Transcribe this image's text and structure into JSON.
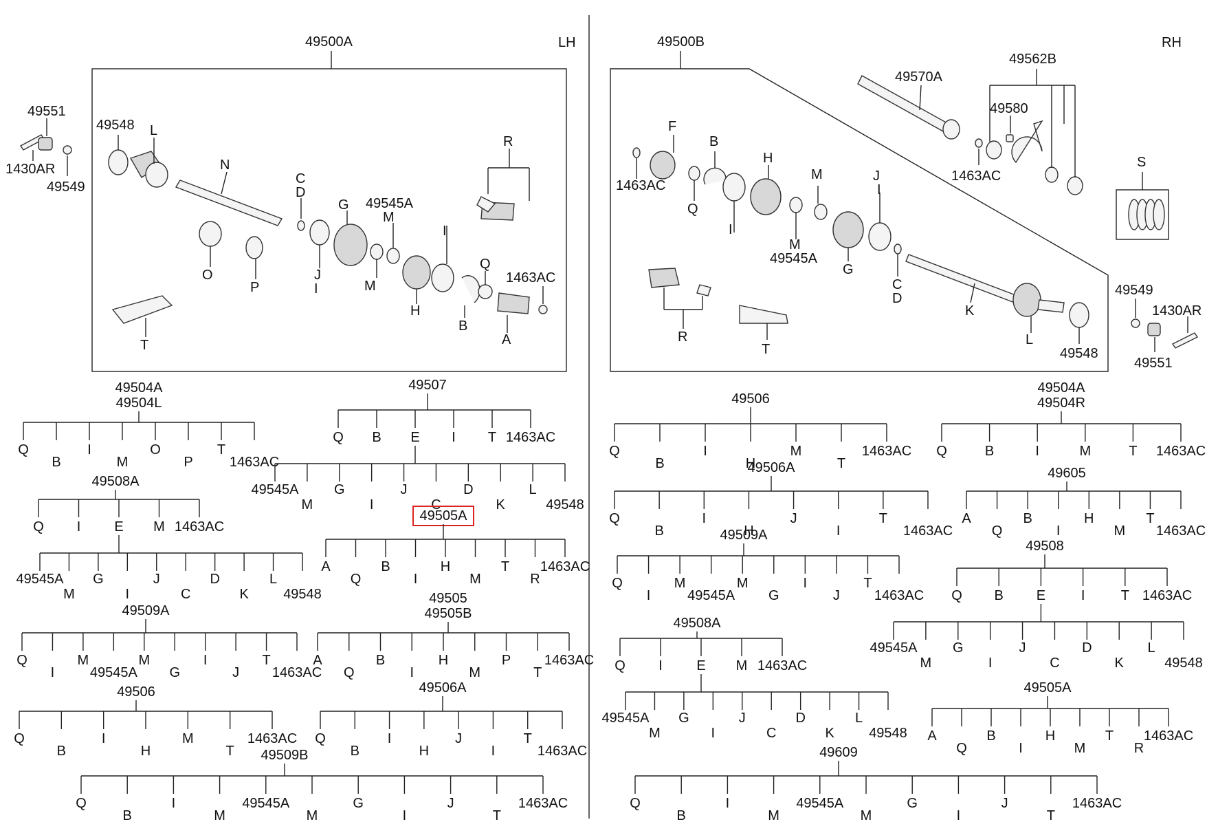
{
  "headers": {
    "left_side": "LH",
    "right_side": "RH"
  },
  "lh_assembly": {
    "title": "49500A",
    "outside_labels": [
      "49551",
      "49548",
      "1430AR",
      "49549"
    ],
    "part_labels": [
      "L",
      "N",
      "C",
      "D",
      "G",
      "49545A",
      "M",
      "R",
      "O",
      "P",
      "J",
      "I",
      "M",
      "I",
      "Q",
      "1463AC",
      "H",
      "B",
      "A",
      "T"
    ]
  },
  "rh_assembly": {
    "title": "49500B",
    "part_labels": [
      "49570A",
      "49562B",
      "49580",
      "1463AC",
      "S",
      "F",
      "B",
      "H",
      "M",
      "J",
      "I",
      "1463AC",
      "Q",
      "I",
      "M",
      "49545A",
      "G",
      "C",
      "D",
      "K",
      "L",
      "R",
      "T",
      "49548"
    ],
    "outside_labels": [
      "49549",
      "1430AR",
      "49551"
    ]
  },
  "lh_trees": [
    {
      "title": [
        "49504A",
        "49504L"
      ],
      "children": [
        "Q",
        "B",
        "I",
        "M",
        "O",
        "P",
        "T",
        "1463AC"
      ]
    },
    {
      "title": [
        "49508A"
      ],
      "children": [
        "Q",
        "I",
        "E",
        "M",
        "1463AC"
      ],
      "sub_title": "E",
      "sub_children": [
        "49545A",
        "M",
        "G",
        "I",
        "J",
        "C",
        "D",
        "K",
        "L",
        "49548"
      ]
    },
    {
      "title": [
        "49509A"
      ],
      "children": [
        "Q",
        "I",
        "M",
        "49545A",
        "M",
        "G",
        "I",
        "J",
        "T",
        "1463AC"
      ]
    },
    {
      "title": [
        "49506"
      ],
      "children": [
        "Q",
        "B",
        "I",
        "H",
        "M",
        "T",
        "1463AC"
      ]
    },
    {
      "title": [
        "49509B"
      ],
      "children": [
        "Q",
        "B",
        "I",
        "M",
        "49545A",
        "M",
        "G",
        "I",
        "J",
        "T",
        "1463AC"
      ]
    },
    {
      "title": [
        "49507"
      ],
      "children": [
        "Q",
        "B",
        "E",
        "I",
        "T",
        "1463AC"
      ],
      "sub_title": "E",
      "sub_children": [
        "49545A",
        "M",
        "G",
        "I",
        "J",
        "C",
        "D",
        "K",
        "L",
        "49548"
      ]
    },
    {
      "title": [
        "49505A"
      ],
      "highlighted": true,
      "children": [
        "A",
        "Q",
        "B",
        "I",
        "H",
        "M",
        "T",
        "R",
        "1463AC"
      ]
    },
    {
      "title": [
        "49505",
        "49505B"
      ],
      "children": [
        "A",
        "Q",
        "B",
        "I",
        "H",
        "M",
        "P",
        "T",
        "1463AC"
      ]
    },
    {
      "title": [
        "49506A"
      ],
      "children": [
        "Q",
        "B",
        "I",
        "H",
        "J",
        "I",
        "T",
        "1463AC"
      ]
    }
  ],
  "rh_trees": [
    {
      "title": [
        "49506"
      ],
      "children": [
        "Q",
        "B",
        "I",
        "H",
        "M",
        "T",
        "1463AC"
      ]
    },
    {
      "title": [
        "49506A"
      ],
      "children": [
        "Q",
        "B",
        "I",
        "H",
        "J",
        "I",
        "T",
        "1463AC"
      ]
    },
    {
      "title": [
        "49509A"
      ],
      "children": [
        "Q",
        "I",
        "M",
        "49545A",
        "M",
        "G",
        "I",
        "J",
        "T",
        "1463AC"
      ]
    },
    {
      "title": [
        "49508A"
      ],
      "children": [
        "Q",
        "I",
        "E",
        "M",
        "1463AC"
      ],
      "sub_title": "E",
      "sub_children": [
        "49545A",
        "M",
        "G",
        "I",
        "J",
        "C",
        "D",
        "K",
        "L",
        "49548"
      ]
    },
    {
      "title": [
        "49609"
      ],
      "children": [
        "Q",
        "B",
        "I",
        "M",
        "49545A",
        "M",
        "G",
        "I",
        "J",
        "T",
        "1463AC"
      ]
    },
    {
      "title": [
        "49504A",
        "49504R"
      ],
      "children": [
        "Q",
        "B",
        "I",
        "M",
        "T",
        "1463AC"
      ]
    },
    {
      "title": [
        "49605"
      ],
      "children": [
        "A",
        "Q",
        "B",
        "I",
        "H",
        "M",
        "T",
        "1463AC"
      ]
    },
    {
      "title": [
        "49508"
      ],
      "children": [
        "Q",
        "B",
        "E",
        "I",
        "T",
        "1463AC"
      ],
      "sub_title": "E",
      "sub_children": [
        "49545A",
        "M",
        "G",
        "I",
        "J",
        "C",
        "D",
        "K",
        "L",
        "49548"
      ]
    },
    {
      "title": [
        "49505A"
      ],
      "children": [
        "A",
        "Q",
        "B",
        "I",
        "H",
        "M",
        "T",
        "R",
        "1463AC"
      ]
    }
  ],
  "colors": {
    "line": "#222222",
    "highlight": "#d22222",
    "background": "#ffffff"
  }
}
